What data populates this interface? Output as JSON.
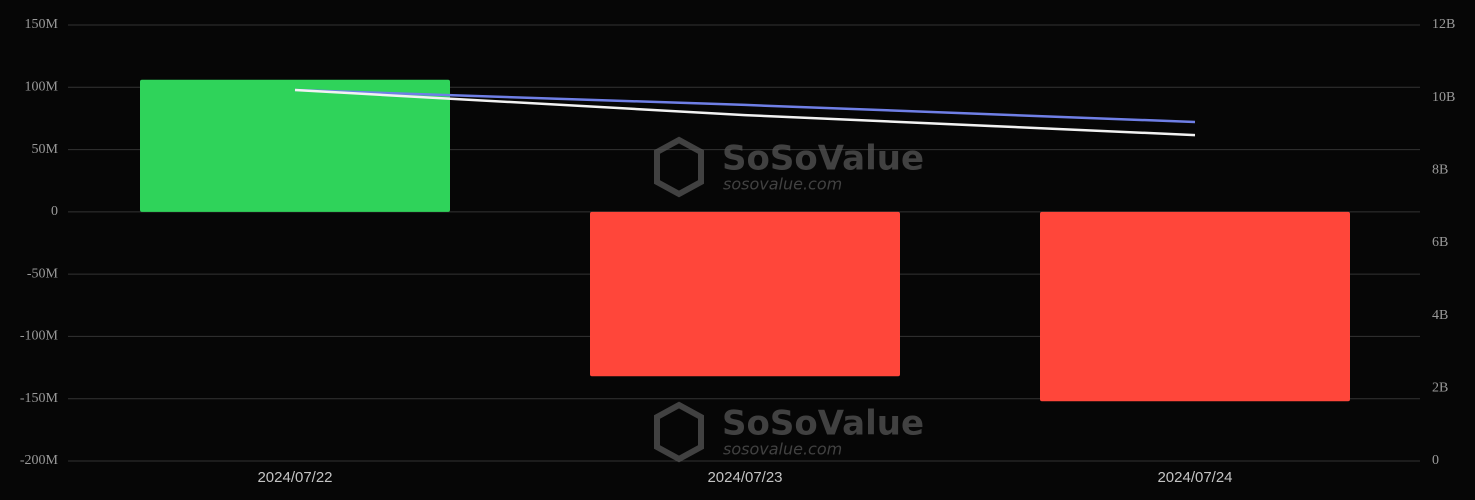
{
  "chart_data": {
    "type": "bar",
    "categories": [
      "2024/07/22",
      "2024/07/23",
      "2024/07/24"
    ],
    "series": [
      {
        "type": "bar",
        "values": [
          106,
          -132,
          -152
        ],
        "colors": [
          "#2fd35a",
          "#ff463a",
          "#ff463a"
        ]
      },
      {
        "type": "line",
        "axis": "y2",
        "color": "#6f7fe6",
        "values": [
          10.21,
          9.8,
          9.33
        ]
      },
      {
        "type": "line",
        "axis": "y2",
        "color": "#f2f2f2",
        "values": [
          10.21,
          9.52,
          8.97
        ]
      }
    ],
    "ylim": [
      -200,
      150
    ],
    "yticks": [
      {
        "value": -200,
        "label": "-200M"
      },
      {
        "value": -150,
        "label": "-150M"
      },
      {
        "value": -100,
        "label": "-100M"
      },
      {
        "value": -50,
        "label": "-50M"
      },
      0,
      {
        "value": 50,
        "label": "50M"
      },
      {
        "value": 100,
        "label": "100M"
      },
      {
        "value": 150,
        "label": "150M"
      }
    ],
    "y2lim": [
      0,
      12
    ],
    "y2ticks": [
      0,
      {
        "value": 2,
        "label": "2B"
      },
      {
        "value": 4,
        "label": "4B"
      },
      {
        "value": 6,
        "label": "6B"
      },
      {
        "value": 8,
        "label": "8B"
      },
      {
        "value": 10,
        "label": "10B"
      },
      {
        "value": 12,
        "label": "12B"
      }
    ],
    "grid": true,
    "watermark": [
      "SoSoValue",
      "sosovalue.com"
    ]
  }
}
